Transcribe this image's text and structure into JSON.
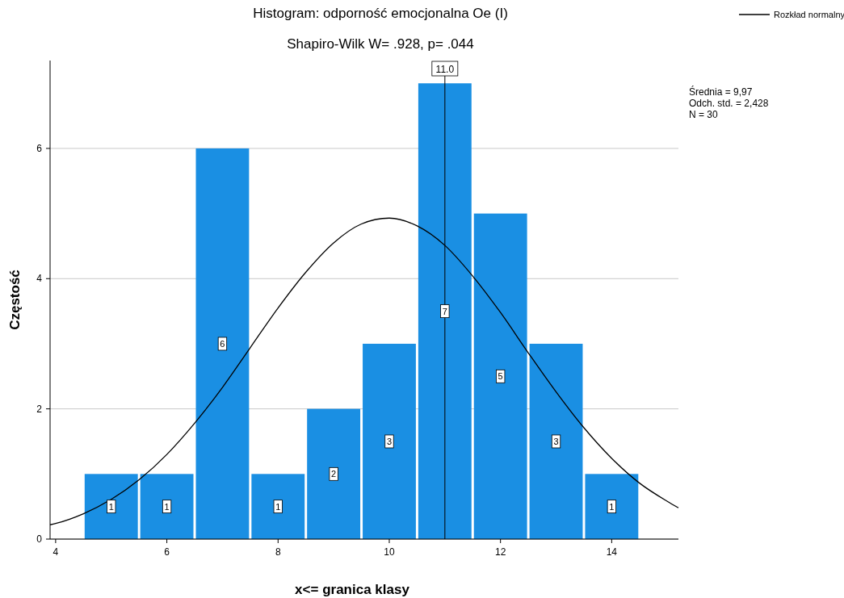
{
  "chart_data": {
    "type": "histogram",
    "title": "Histogram: odporność emocjonalna Oe (I)",
    "subtitle": "Shapiro-Wilk W= .928, p= .044",
    "xlabel": "x<= granica klasy",
    "ylabel": "Częstość",
    "bins": [
      4.5,
      5.5,
      6.5,
      7.5,
      8.5,
      9.5,
      10.5,
      11.5,
      12.5,
      13.5,
      14.5
    ],
    "values": [
      1,
      1,
      6,
      1,
      2,
      3,
      7,
      5,
      3,
      1
    ],
    "color": "#1a8fe3",
    "value_labels": [
      "1",
      "1",
      "6",
      "1",
      "2",
      "3",
      "7",
      "5",
      "3",
      "1"
    ],
    "series": [
      {
        "name": "Rozkład normalny",
        "type": "line",
        "color": "#000000",
        "x": [
          3.9,
          4,
          4.5,
          5,
          5.5,
          6,
          6.5,
          7,
          7.5,
          8,
          8.5,
          9,
          9.5,
          10,
          10.5,
          11,
          11.5,
          12,
          12.5,
          13,
          13.5,
          14,
          14.5,
          15,
          15.2
        ],
        "values": [
          0.22,
          0.24,
          0.39,
          0.61,
          0.91,
          1.3,
          1.78,
          2.33,
          2.94,
          3.55,
          4.1,
          4.55,
          4.84,
          4.93,
          4.81,
          4.51,
          4.04,
          3.48,
          2.86,
          2.26,
          1.71,
          1.24,
          0.86,
          0.58,
          0.48
        ]
      }
    ],
    "ref_lines": [
      {
        "axis": "x",
        "value": 11,
        "label": "11.0",
        "color": "#000000"
      }
    ],
    "annotations": [
      "Średnia = 9,97",
      "Odch. std. = 2,428",
      "N = 30"
    ],
    "xlim": [
      3.9,
      15.2
    ],
    "ylim": [
      0,
      7.35
    ],
    "xticks": [
      4,
      6,
      8,
      10,
      12,
      14
    ],
    "yticks": [
      0,
      2,
      4,
      6
    ],
    "grid": "y",
    "legend": "top right"
  }
}
